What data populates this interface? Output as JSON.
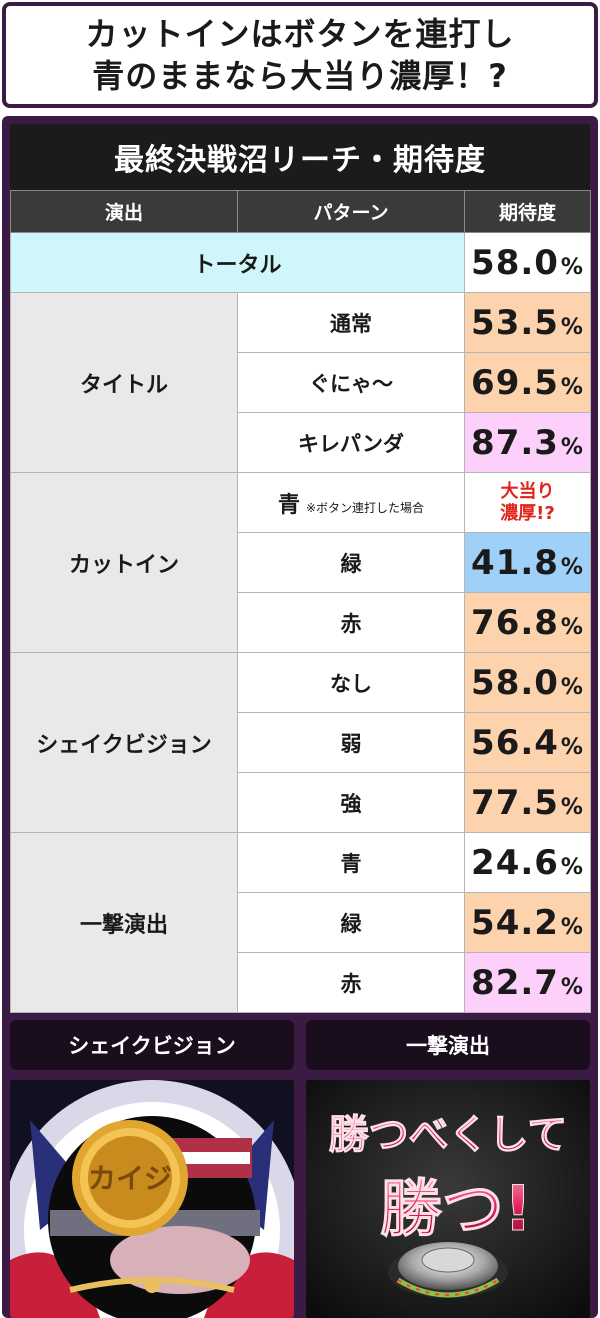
{
  "headline": {
    "line1": "カットインはボタンを連打し",
    "line2": "青のままなら大当り濃厚！?"
  },
  "table": {
    "title": "最終決戦沼リーチ・期待度",
    "headers": {
      "action": "演出",
      "pattern": "パターン",
      "expectation": "期待度"
    },
    "total": {
      "label": "トータル",
      "value": "58.0",
      "unit": "%"
    },
    "groups": [
      {
        "action": "タイトル",
        "rows": [
          {
            "pattern": "通常",
            "value": "53.5",
            "unit": "%",
            "color": "#fcd3ad"
          },
          {
            "pattern": "ぐにゃ～",
            "value": "69.5",
            "unit": "%",
            "color": "#fcd3ad"
          },
          {
            "pattern": "キレパンダ",
            "value": "87.3",
            "unit": "%",
            "color": "#fcd0fb"
          }
        ]
      },
      {
        "action": "カットイン",
        "rows": [
          {
            "pattern": "青",
            "note": "※ボタン連打した場合",
            "value_line1": "大当り",
            "value_line2": "濃厚!?",
            "color": "#ffffff"
          },
          {
            "pattern": "緑",
            "value": "41.8",
            "unit": "%",
            "color": "#9fd0f8"
          },
          {
            "pattern": "赤",
            "value": "76.8",
            "unit": "%",
            "color": "#fcd3ad"
          }
        ]
      },
      {
        "action": "シェイクビジョン",
        "rows": [
          {
            "pattern": "なし",
            "value": "58.0",
            "unit": "%",
            "color": "#fcd3ad"
          },
          {
            "pattern": "弱",
            "value": "56.4",
            "unit": "%",
            "color": "#fcd3ad"
          },
          {
            "pattern": "強",
            "value": "77.5",
            "unit": "%",
            "color": "#fcd3ad"
          }
        ]
      },
      {
        "action": "一撃演出",
        "rows": [
          {
            "pattern": "青",
            "value": "24.6",
            "unit": "%",
            "color": "#ffffff"
          },
          {
            "pattern": "緑",
            "value": "54.2",
            "unit": "%",
            "color": "#fcd3ad"
          },
          {
            "pattern": "赤",
            "value": "82.7",
            "unit": "%",
            "color": "#fcd0fb"
          }
        ]
      }
    ]
  },
  "captions": {
    "left": "シェイクビジョン",
    "right": "一撃演出"
  },
  "images": {
    "left": {
      "coin_text": "カイジ"
    },
    "right": {
      "text_line1": "勝つべくして",
      "text_line2": "勝つ!"
    }
  }
}
